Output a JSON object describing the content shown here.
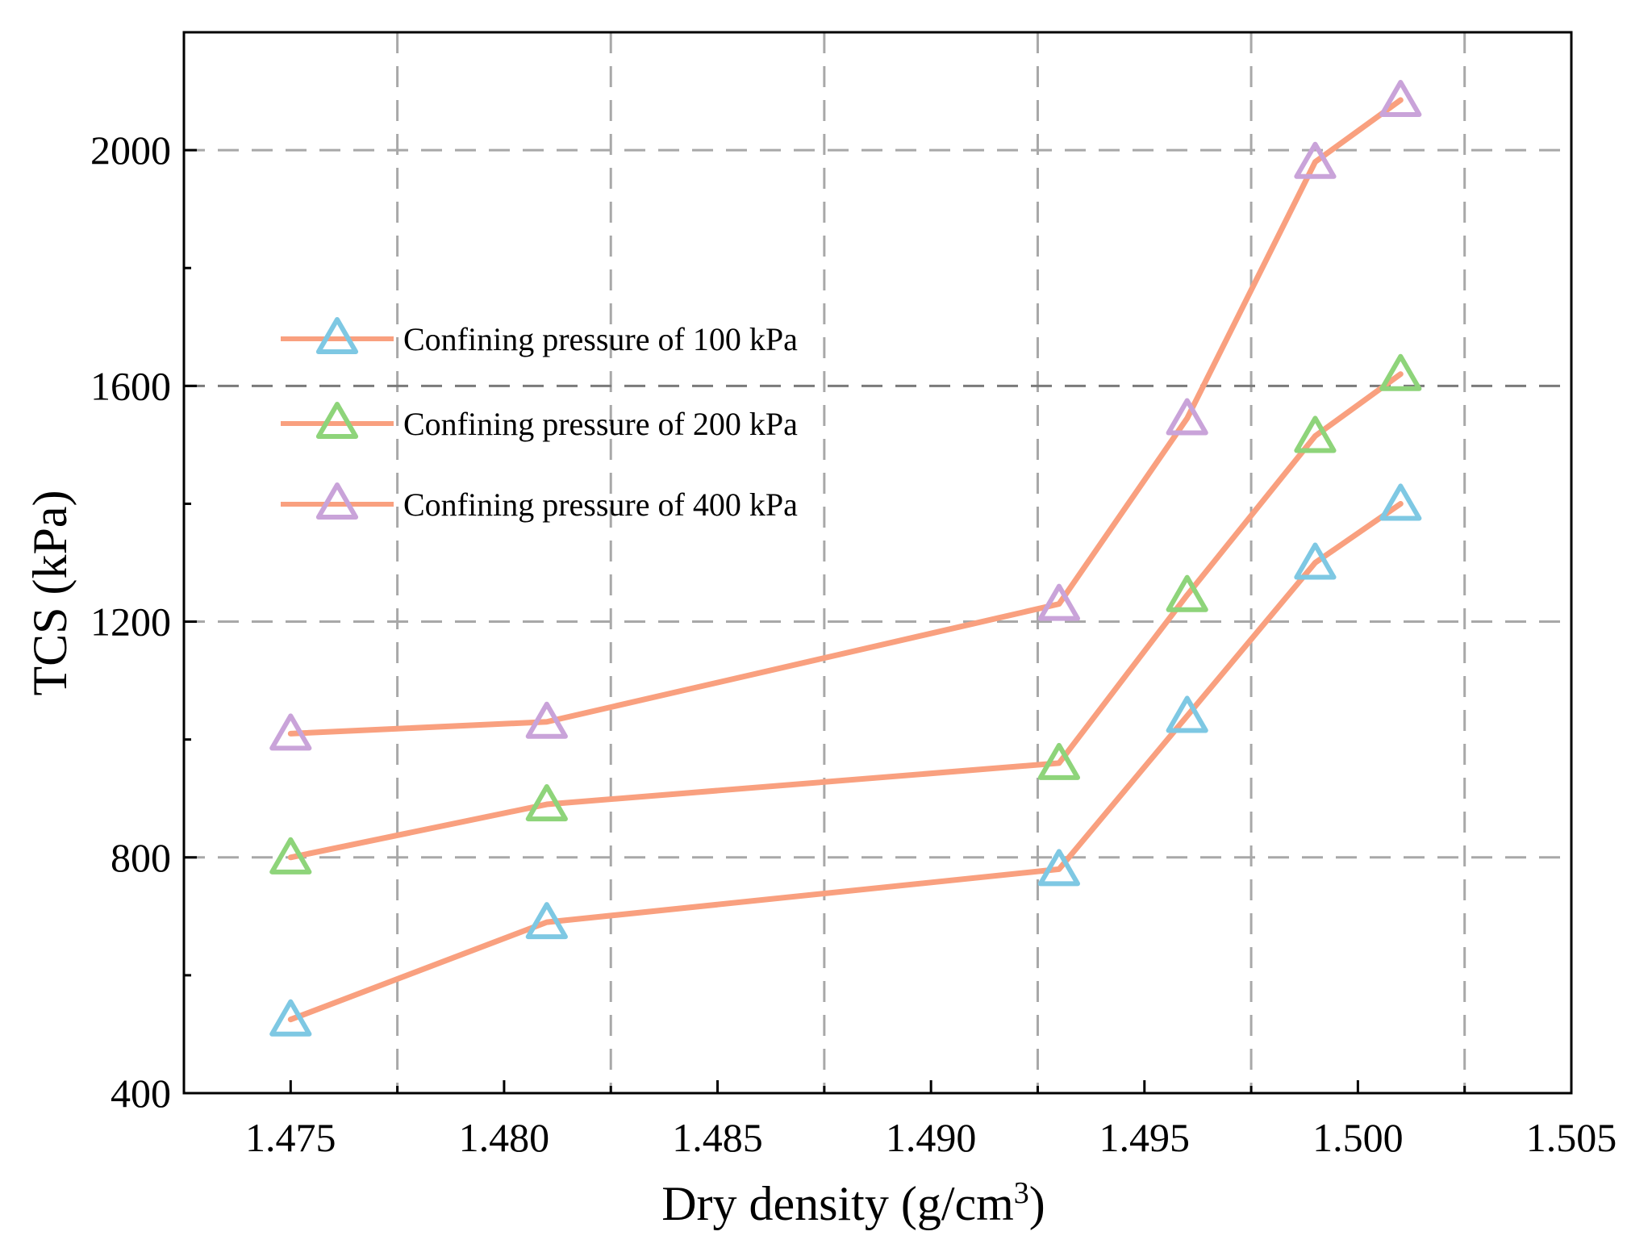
{
  "chart_data": {
    "type": "line",
    "xlabel": "Dry density (g/cm",
    "xlabel_sup": "3",
    "xlabel_end": ")",
    "ylabel": "TCS (kPa)",
    "xlim": [
      1.4725,
      1.505
    ],
    "ylim": [
      400,
      2200
    ],
    "xticks": [
      "1.475",
      "1.480",
      "1.485",
      "1.490",
      "1.495",
      "1.500",
      "1.505"
    ],
    "xtick_values": [
      1.475,
      1.48,
      1.485,
      1.49,
      1.495,
      1.5,
      1.505
    ],
    "yticks": [
      "400",
      "800",
      "1200",
      "1600",
      "2000"
    ],
    "ytick_values": [
      400,
      800,
      1200,
      1600,
      2000
    ],
    "grid": {
      "vertical_dashed": [
        1.4775,
        1.4825,
        1.4875,
        1.4925,
        1.4975,
        1.5025
      ],
      "horizontal_dashed": [
        800,
        1200,
        1600,
        2000
      ]
    },
    "legend_position": "center-left",
    "line_color": "#f9a07f",
    "series": [
      {
        "name": "Confining pressure of 100 kPa",
        "marker_color": "#7ec8e3",
        "x": [
          1.475,
          1.481,
          1.493,
          1.496,
          1.499,
          1.501
        ],
        "y": [
          525,
          690,
          780,
          1040,
          1300,
          1400
        ]
      },
      {
        "name": "Confining pressure of 200 kPa",
        "marker_color": "#8ed47a",
        "x": [
          1.475,
          1.481,
          1.493,
          1.496,
          1.499,
          1.501
        ],
        "y": [
          800,
          890,
          960,
          1245,
          1515,
          1620
        ]
      },
      {
        "name": "Confining pressure of 400 kPa",
        "marker_color": "#c9a3d9",
        "x": [
          1.475,
          1.481,
          1.493,
          1.496,
          1.499,
          1.501
        ],
        "y": [
          1010,
          1030,
          1230,
          1545,
          1980,
          2085
        ]
      }
    ]
  }
}
